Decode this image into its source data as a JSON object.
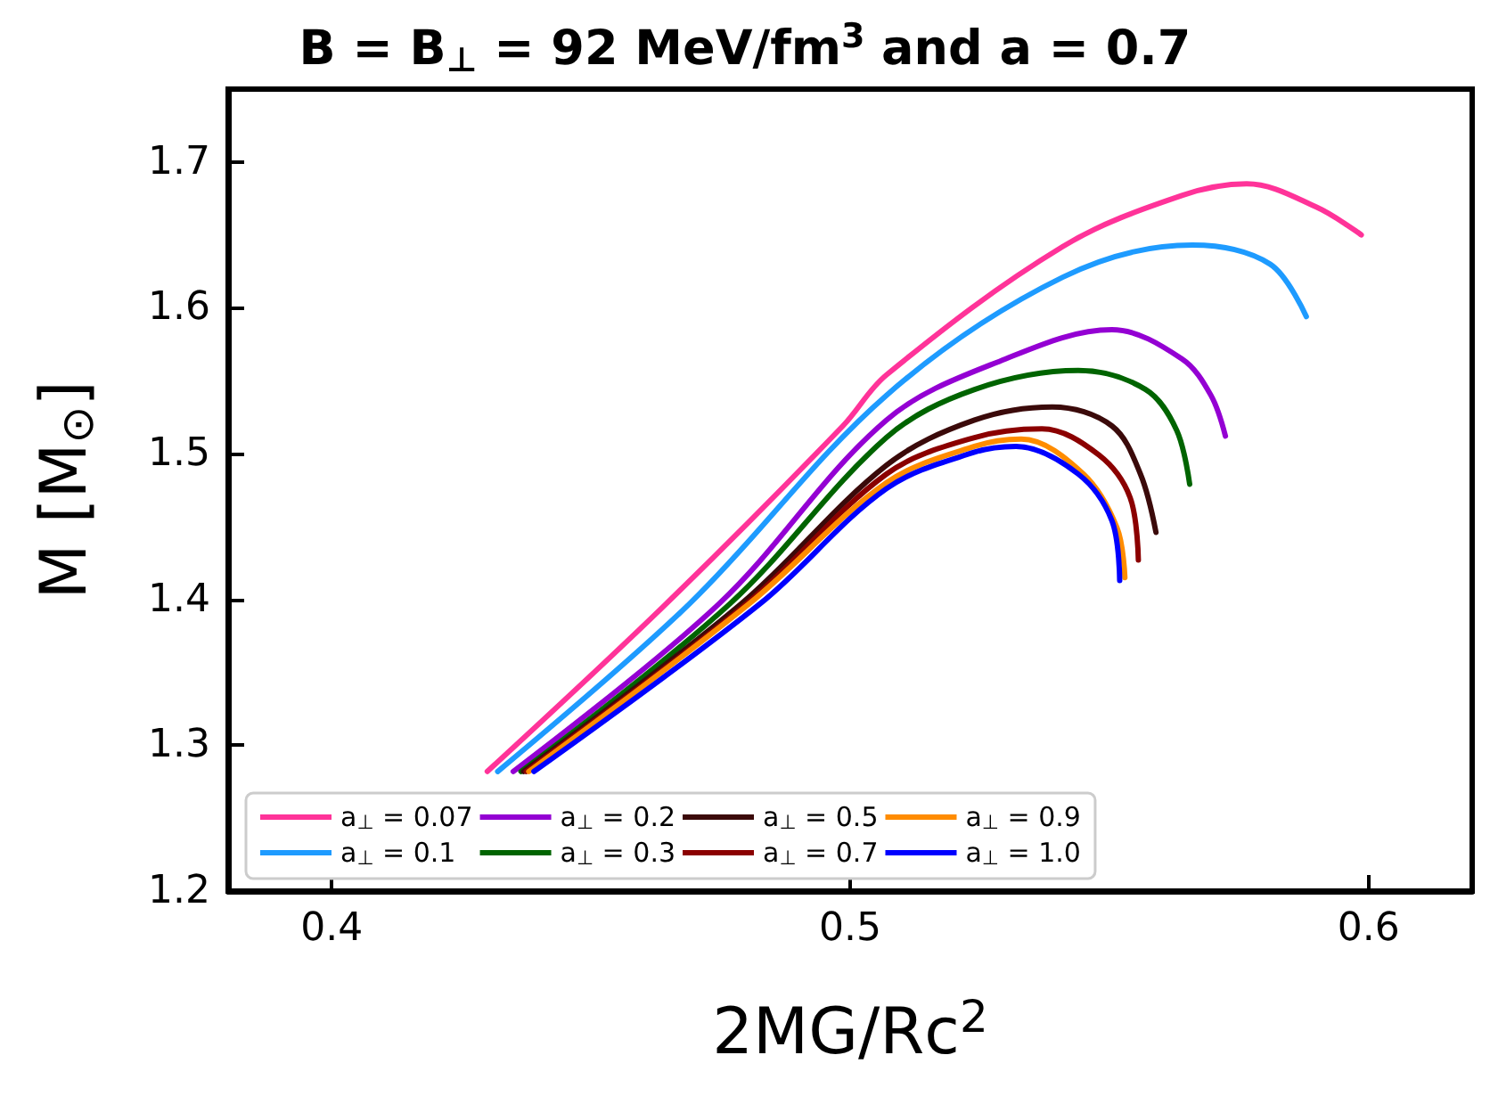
{
  "chart_data": {
    "type": "line",
    "title": "B = B$_{⊥}$ = 92 MeV/fm$^{3}$ and a = 0.7",
    "xlabel": "2MG/Rc$^{2}$",
    "ylabel": "M [M$_{⊙}$]",
    "xlim": [
      0.38,
      0.62
    ],
    "ylim": [
      1.2,
      1.75
    ],
    "xticks": [
      0.4,
      0.5,
      0.6
    ],
    "yticks": [
      1.2,
      1.3,
      1.4,
      1.5,
      1.6,
      1.7
    ],
    "grid": false,
    "legend": "bottom",
    "marker": "none",
    "line_style": "solid",
    "series": [
      {
        "name": "a$_{⊥}$ = 0.07",
        "color": "#ff3399",
        "x": [
          0.43,
          0.4645,
          0.4986,
          0.507,
          0.541,
          0.564,
          0.5765,
          0.59,
          0.5986
        ],
        "values": [
          1.282,
          1.397,
          1.519,
          1.554,
          1.642,
          1.677,
          1.685,
          1.669,
          1.65
        ]
      },
      {
        "name": "a$_{⊥}$ = 0.1",
        "color": "#1e9bff",
        "x": [
          0.432,
          0.469,
          0.507,
          0.541,
          0.566,
          0.581,
          0.588
        ],
        "values": [
          1.282,
          1.397,
          1.54,
          1.621,
          1.643,
          1.63,
          1.594
        ]
      },
      {
        "name": "a$_{⊥}$ = 0.2",
        "color": "#9400d3",
        "x": [
          0.435,
          0.4747,
          0.507,
          0.53,
          0.5505,
          0.564,
          0.5696,
          0.5724
        ],
        "values": [
          1.282,
          1.397,
          1.523,
          1.565,
          1.585,
          1.565,
          1.54,
          1.512
        ]
      },
      {
        "name": "a$_{⊥}$ = 0.3",
        "color": "#006400",
        "x": [
          0.4365,
          0.4768,
          0.507,
          0.524,
          0.544,
          0.557,
          0.563,
          0.5655
        ],
        "values": [
          1.282,
          1.397,
          1.511,
          1.544,
          1.557,
          1.544,
          1.516,
          1.479
        ]
      },
      {
        "name": "a$_{⊥}$ = 0.5",
        "color": "#3b0a0a",
        "x": [
          0.437,
          0.479,
          0.507,
          0.524,
          0.539,
          0.5505,
          0.556,
          0.559
        ],
        "values": [
          1.282,
          1.397,
          1.492,
          1.523,
          1.532,
          1.519,
          1.486,
          1.446
        ]
      },
      {
        "name": "a$_{⊥}$ = 0.7",
        "color": "#8b0000",
        "x": [
          0.4375,
          0.48,
          0.507,
          0.524,
          0.537,
          0.548,
          0.554,
          0.5556
        ],
        "values": [
          1.282,
          1.397,
          1.486,
          1.511,
          1.517,
          1.499,
          1.47,
          1.427
        ]
      },
      {
        "name": "a$_{⊥}$ = 0.9",
        "color": "#ff8c00",
        "x": [
          0.438,
          0.4805,
          0.507,
          0.524,
          0.533,
          0.545,
          0.5515,
          0.553
        ],
        "values": [
          1.282,
          1.397,
          1.48,
          1.505,
          1.51,
          1.486,
          1.449,
          1.415
        ]
      },
      {
        "name": "a$_{⊥}$ = 1.0",
        "color": "#0000ff",
        "x": [
          0.439,
          0.4826,
          0.507,
          0.524,
          0.532,
          0.544,
          0.5505,
          0.552
        ],
        "values": [
          1.282,
          1.397,
          1.476,
          1.501,
          1.505,
          1.486,
          1.454,
          1.413
        ]
      }
    ]
  }
}
